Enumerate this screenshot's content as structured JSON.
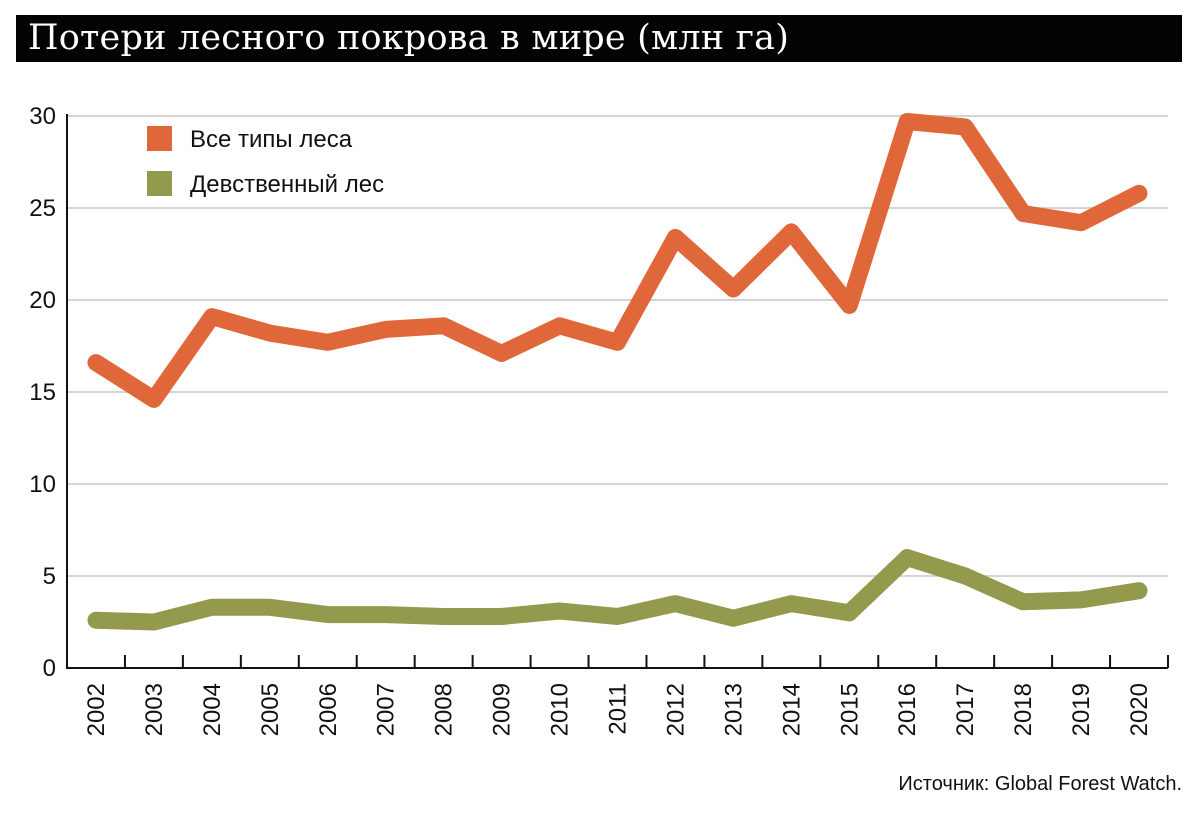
{
  "title": "Потери лесного покрова в мире (млн га)",
  "source": "Источник: Global Forest Watch.",
  "chart_data": {
    "type": "line",
    "title": "Потери лесного покрова в мире (млн га)",
    "xlabel": "",
    "ylabel": "",
    "x": [
      "2002",
      "2003",
      "2004",
      "2005",
      "2006",
      "2007",
      "2008",
      "2009",
      "2010",
      "2011",
      "2012",
      "2013",
      "2014",
      "2015",
      "2016",
      "2017",
      "2018",
      "2019",
      "2020"
    ],
    "ylim": [
      0,
      30
    ],
    "yticks": [
      "0",
      "5",
      "10",
      "15",
      "20",
      "25",
      "30"
    ],
    "grid": true,
    "legend_position": "top-left",
    "series": [
      {
        "name": "Все типы леса",
        "color": "#df6739",
        "values": [
          16.6,
          14.6,
          19.1,
          18.2,
          17.7,
          18.4,
          18.6,
          17.1,
          18.6,
          17.7,
          23.4,
          20.6,
          23.7,
          19.7,
          29.7,
          29.4,
          24.7,
          24.2,
          25.8
        ]
      },
      {
        "name": "Девственный лес",
        "color": "#949a4d",
        "values": [
          2.6,
          2.5,
          3.3,
          3.3,
          2.9,
          2.9,
          2.8,
          2.8,
          3.1,
          2.8,
          3.5,
          2.7,
          3.5,
          3.0,
          6.0,
          5.0,
          3.6,
          3.7,
          4.2
        ]
      }
    ]
  }
}
